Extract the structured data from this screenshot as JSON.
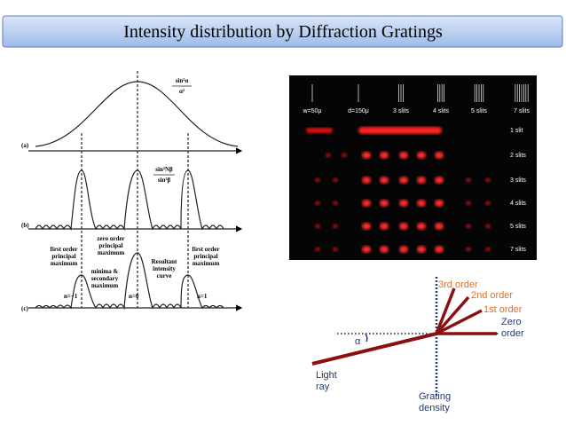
{
  "header": {
    "title": "Intensity distribution by Diffraction Gratings"
  },
  "figure_left": {
    "panels": [
      "(a)",
      "(b)",
      "(c)"
    ],
    "formula_a": [
      "sin²α",
      "α²"
    ],
    "formula_b": [
      "sin²Nβ",
      "sin²β"
    ],
    "labels": [
      [
        "first order",
        "principal",
        "maximum"
      ],
      [
        "zero order",
        "principal",
        "maximum"
      ],
      [
        "Resultant",
        "intensity",
        "curve"
      ],
      [
        "minima &",
        "secondary",
        "maximum"
      ],
      [
        "first order",
        "principal",
        "maximum"
      ]
    ],
    "orders": [
      "n=−1",
      "n=0",
      "n=1"
    ]
  },
  "figure_photo": {
    "columns": [
      "w=50μ",
      "d=150μ",
      "3 slits",
      "4 slits",
      "5 slits",
      "7 slits"
    ],
    "rows": [
      "1 slit",
      "2 slits",
      "3 slits",
      "4 slits",
      "5 slits",
      "7 slits"
    ]
  },
  "figure_orders": {
    "orders": [
      "3rd order",
      "2nd order",
      "1st order"
    ],
    "zero": [
      "Zero",
      "order"
    ],
    "angle": "α",
    "source": [
      "Light",
      "ray"
    ],
    "grating": [
      "Grating",
      "density"
    ]
  }
}
